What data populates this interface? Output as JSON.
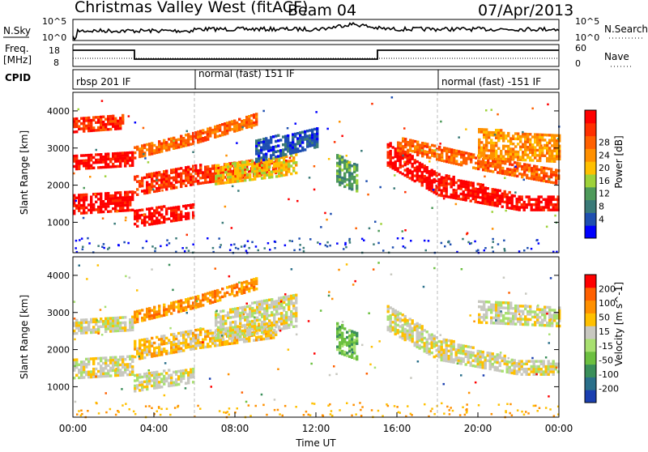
{
  "header": {
    "station": "Christmas Valley West (fitACF)",
    "beam": "Beam 04",
    "date": "07/Apr/2013"
  },
  "nsky_panel": {
    "label": "N.Sky",
    "right_label": "N.Search",
    "ticks_left": [
      "10^5",
      "10^0"
    ],
    "ticks_right": [
      "10^5",
      "10^0"
    ]
  },
  "freq_panel": {
    "label_line1": "Freq.",
    "label_line2": "[MHz]",
    "right_label": "Nave",
    "ticks_left": [
      "18",
      "8"
    ],
    "ticks_right": [
      "60",
      "0"
    ]
  },
  "cpid_panel": {
    "label": "CPID",
    "segments": [
      {
        "label": "rbsp 201 IF",
        "start_hour": 0
      },
      {
        "label": "normal (fast) 151 IF",
        "start_hour": 6
      },
      {
        "label": "normal (fast) -151 IF",
        "start_hour": 18
      }
    ]
  },
  "x_axis": {
    "label": "Time UT",
    "tick_labels": [
      "00:00",
      "04:00",
      "08:00",
      "12:00",
      "16:00",
      "20:00",
      "00:00"
    ]
  },
  "chart_data": [
    {
      "type": "heatmap",
      "name": "power",
      "ylabel": "Slant Range [km]",
      "ylim": [
        180,
        4500
      ],
      "y_ticks": [
        "1000",
        "2000",
        "3000",
        "4000"
      ],
      "colorbar": {
        "label": "Power [dB]",
        "tick_labels": [
          "4",
          "8",
          "12",
          "16",
          "20",
          "24",
          "28"
        ],
        "colors": [
          "#0000ff",
          "#1f4fb0",
          "#3a7a78",
          "#4e9a5a",
          "#9ed23a",
          "#ffc000",
          "#ff9000",
          "#ff6000",
          "#ff3000",
          "#ff0000"
        ]
      },
      "bands": [
        {
          "x": [
            0,
            3,
            3,
            6
          ],
          "y_lo": [
            1200,
            1300,
            850,
            1100
          ],
          "y_hi": [
            1700,
            1800,
            1300,
            1500
          ],
          "level": 9
        },
        {
          "x": [
            0,
            3
          ],
          "y_lo": [
            2400,
            2500
          ],
          "y_hi": [
            2800,
            2900
          ],
          "level": 9
        },
        {
          "x": [
            0,
            2.5
          ],
          "y_lo": [
            3400,
            3500
          ],
          "y_hi": [
            3800,
            3900
          ],
          "level": 8
        },
        {
          "x": [
            3,
            6,
            10
          ],
          "y_lo": [
            1700,
            2000,
            2300
          ],
          "y_hi": [
            2200,
            2500,
            2700
          ],
          "level": 8
        },
        {
          "x": [
            3,
            6,
            9
          ],
          "y_lo": [
            2700,
            3100,
            3600
          ],
          "y_hi": [
            3000,
            3400,
            3900
          ],
          "level": 7
        },
        {
          "x": [
            7,
            10,
            11
          ],
          "y_lo": [
            2000,
            2200,
            2300
          ],
          "y_hi": [
            2500,
            2700,
            2900
          ],
          "level": 5
        },
        {
          "x": [
            9,
            12
          ],
          "y_lo": [
            2600,
            3000
          ],
          "y_hi": [
            3200,
            3500
          ],
          "level": 1
        },
        {
          "x": [
            13,
            14
          ],
          "y_lo": [
            2000,
            1800
          ],
          "y_hi": [
            2800,
            2500
          ],
          "level": 3
        },
        {
          "x": [
            15.5,
            18,
            22,
            24
          ],
          "y_lo": [
            2500,
            1700,
            1300,
            1300
          ],
          "y_hi": [
            3200,
            2300,
            1700,
            1700
          ],
          "level": 9
        },
        {
          "x": [
            16,
            20,
            24
          ],
          "y_lo": [
            2900,
            2400,
            2000
          ],
          "y_hi": [
            3300,
            2800,
            2400
          ],
          "level": 7
        },
        {
          "x": [
            20,
            24
          ],
          "y_lo": [
            2700,
            2600
          ],
          "y_hi": [
            3500,
            3300
          ],
          "level": 6
        }
      ]
    },
    {
      "type": "heatmap",
      "name": "velocity",
      "ylabel": "Slant Range [km]",
      "ylim": [
        180,
        4500
      ],
      "y_ticks": [
        "1000",
        "2000",
        "3000",
        "4000"
      ],
      "colorbar": {
        "label": "Velocity [m s^-1]",
        "tick_labels": [
          "200",
          "100",
          "50",
          "15",
          "-15",
          "-50",
          "-100",
          "-200"
        ],
        "colors": [
          "#1a3fb0",
          "#2a6f8a",
          "#3a8f5a",
          "#6cc040",
          "#a8e070",
          "#c8c8c0",
          "#ffc000",
          "#ff9000",
          "#ff6000",
          "#ff0000"
        ]
      },
      "bands": [
        {
          "x": [
            0,
            3,
            3,
            6
          ],
          "y_lo": [
            1200,
            1300,
            850,
            1100
          ],
          "y_hi": [
            1700,
            1800,
            1300,
            1500
          ],
          "level": 5
        },
        {
          "x": [
            0,
            3
          ],
          "y_lo": [
            2400,
            2500
          ],
          "y_hi": [
            2800,
            2900
          ],
          "level": 5
        },
        {
          "x": [
            3,
            6,
            10
          ],
          "y_lo": [
            1700,
            2000,
            2300
          ],
          "y_hi": [
            2200,
            2500,
            2700
          ],
          "level": 6
        },
        {
          "x": [
            3,
            6,
            9
          ],
          "y_lo": [
            2700,
            3100,
            3600
          ],
          "y_hi": [
            3000,
            3400,
            3900
          ],
          "level": 7
        },
        {
          "x": [
            7,
            11
          ],
          "y_lo": [
            2200,
            2600
          ],
          "y_hi": [
            3000,
            3500
          ],
          "level": 5
        },
        {
          "x": [
            13,
            14
          ],
          "y_lo": [
            1900,
            1700
          ],
          "y_hi": [
            2700,
            2400
          ],
          "level": 3
        },
        {
          "x": [
            15.5,
            18,
            22,
            24
          ],
          "y_lo": [
            2500,
            1700,
            1300,
            1300
          ],
          "y_hi": [
            3200,
            2300,
            1700,
            1700
          ],
          "level": 5
        },
        {
          "x": [
            20,
            24
          ],
          "y_lo": [
            2700,
            2600
          ],
          "y_hi": [
            3300,
            3100
          ],
          "level": 5
        }
      ]
    }
  ]
}
